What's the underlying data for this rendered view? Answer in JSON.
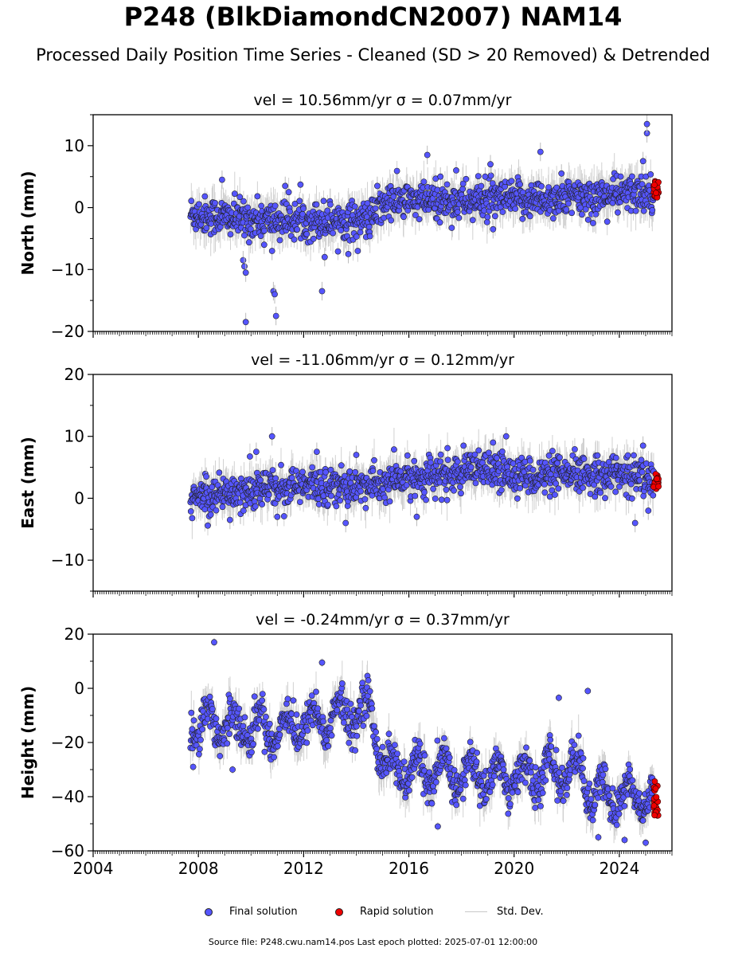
{
  "title": "P248 (BlkDiamondCN2007) NAM14",
  "subtitle": "Processed Daily Position Time Series - Cleaned (SD > 20 Removed) & Detrended",
  "footer": "Source file: P248.cwu.nam14.pos  Last epoch plotted: 2025-07-01 12:00:00",
  "colors": {
    "final": "#5555ff",
    "rapid": "#ee0000",
    "stddev": "#c8c8c8"
  },
  "legend": {
    "final_label": "Final solution",
    "rapid_label": "Rapid solution",
    "stddev_label": "Std. Dev."
  },
  "chart_data": [
    {
      "type": "scatter",
      "title": "vel = 10.56mm/yr   σ = 0.07mm/yr",
      "ylabel": "North (mm)",
      "xlabel": "",
      "xlim": [
        2004,
        2026
      ],
      "ylim": [
        -20,
        15
      ],
      "yticks": [
        -20,
        -10,
        0,
        10
      ],
      "xticks": [
        2004,
        2008,
        2012,
        2016,
        2020,
        2024
      ],
      "show_xticklabels": false,
      "trend_points": [
        [
          2007.7,
          -1
        ],
        [
          2010,
          -2
        ],
        [
          2012.5,
          -2
        ],
        [
          2014.5,
          -2
        ],
        [
          2015.2,
          1
        ],
        [
          2018,
          1
        ],
        [
          2022,
          1.5
        ],
        [
          2025.3,
          2.5
        ]
      ],
      "scatter_sd": 1.5,
      "outliers": [
        [
          2008.9,
          4.5
        ],
        [
          2009.7,
          -8.5
        ],
        [
          2009.75,
          -9.5
        ],
        [
          2009.8,
          -10.5
        ],
        [
          2009.8,
          -18.5
        ],
        [
          2010.5,
          -6
        ],
        [
          2010.8,
          -7
        ],
        [
          2010.85,
          -13.5
        ],
        [
          2010.9,
          -14
        ],
        [
          2010.95,
          -17.5
        ],
        [
          2011.3,
          3.5
        ],
        [
          2012.7,
          -13.5
        ],
        [
          2012.8,
          -8
        ],
        [
          2013.7,
          -7.5
        ],
        [
          2014.8,
          3.5
        ],
        [
          2016.7,
          8.5
        ],
        [
          2017.2,
          5
        ],
        [
          2017.8,
          6
        ],
        [
          2018.9,
          5
        ],
        [
          2019.1,
          7
        ],
        [
          2021,
          9
        ],
        [
          2021.8,
          5.5
        ],
        [
          2024.9,
          7.5
        ],
        [
          2025.05,
          12
        ],
        [
          2025.05,
          13.5
        ],
        [
          2023,
          -2.5
        ],
        [
          2019.2,
          -3.5
        ]
      ],
      "rapid": {
        "x_start": 2025.3,
        "x_end": 2025.5,
        "y_min": 1.5,
        "y_max": 4.5
      },
      "series": [
        {
          "name": "Final solution",
          "x_range": [
            2007.7,
            2025.3
          ]
        },
        {
          "name": "Rapid solution",
          "x_range": [
            2025.3,
            2025.5
          ]
        }
      ]
    },
    {
      "type": "scatter",
      "title": "vel = -11.06mm/yr   σ = 0.12mm/yr",
      "ylabel": "East (mm)",
      "xlabel": "",
      "xlim": [
        2004,
        2026
      ],
      "ylim": [
        -15,
        20
      ],
      "yticks": [
        -10,
        0,
        10,
        20
      ],
      "xticks": [
        2004,
        2008,
        2012,
        2016,
        2020,
        2024
      ],
      "show_xticklabels": false,
      "trend_points": [
        [
          2007.7,
          0
        ],
        [
          2010,
          1.5
        ],
        [
          2012,
          2
        ],
        [
          2015,
          2
        ],
        [
          2015.5,
          3
        ],
        [
          2017,
          3.5
        ],
        [
          2019,
          4.5
        ],
        [
          2021,
          3.5
        ],
        [
          2024,
          4
        ],
        [
          2025.3,
          3
        ]
      ],
      "scatter_sd": 1.5,
      "outliers": [
        [
          2010.8,
          10
        ],
        [
          2010.2,
          7.5
        ],
        [
          2013.6,
          -4
        ],
        [
          2012.5,
          7.5
        ],
        [
          2014,
          7
        ],
        [
          2016.2,
          6
        ],
        [
          2019.2,
          9
        ],
        [
          2019.7,
          10
        ],
        [
          2024.9,
          8.5
        ],
        [
          2024.6,
          -4
        ],
        [
          2025.1,
          -2
        ],
        [
          2016.3,
          -3
        ],
        [
          2009.2,
          -3.5
        ],
        [
          2008.3,
          3.5
        ],
        [
          2011,
          -3
        ]
      ],
      "rapid": {
        "x_start": 2025.3,
        "x_end": 2025.5,
        "y_min": 1.5,
        "y_max": 4.2
      },
      "series": [
        {
          "name": "Final solution",
          "x_range": [
            2007.7,
            2025.3
          ]
        },
        {
          "name": "Rapid solution",
          "x_range": [
            2025.3,
            2025.5
          ]
        }
      ]
    },
    {
      "type": "scatter",
      "title": "vel = -0.24mm/yr   σ = 0.37mm/yr",
      "ylabel": "Height (mm)",
      "xlabel": "",
      "xlim": [
        2004,
        2026
      ],
      "ylim": [
        -60,
        20
      ],
      "yticks": [
        -60,
        -40,
        -20,
        0,
        20
      ],
      "xticks": [
        2004,
        2008,
        2012,
        2016,
        2020,
        2024
      ],
      "show_xticklabels": true,
      "trend_points": [
        [
          2007.7,
          -12
        ],
        [
          2011,
          -15
        ],
        [
          2014.5,
          -8
        ],
        [
          2015.2,
          -30
        ],
        [
          2020,
          -33
        ],
        [
          2022.5,
          -30
        ],
        [
          2023,
          -40
        ],
        [
          2025.3,
          -40
        ]
      ],
      "seasonal_amp": 6,
      "scatter_sd": 3.5,
      "outliers": [
        [
          2008.6,
          17
        ],
        [
          2012.7,
          9.5
        ],
        [
          2021.7,
          -3.5
        ],
        [
          2022.8,
          -1
        ],
        [
          2007.8,
          -29
        ],
        [
          2009.3,
          -30
        ],
        [
          2017.1,
          -51
        ],
        [
          2023.2,
          -55
        ],
        [
          2024.2,
          -56
        ],
        [
          2025,
          -57
        ]
      ],
      "rapid": {
        "x_start": 2025.3,
        "x_end": 2025.5,
        "y_min": -47,
        "y_max": -33
      },
      "series": [
        {
          "name": "Final solution",
          "x_range": [
            2007.7,
            2025.3
          ]
        },
        {
          "name": "Rapid solution",
          "x_range": [
            2025.3,
            2025.5
          ]
        }
      ]
    }
  ]
}
